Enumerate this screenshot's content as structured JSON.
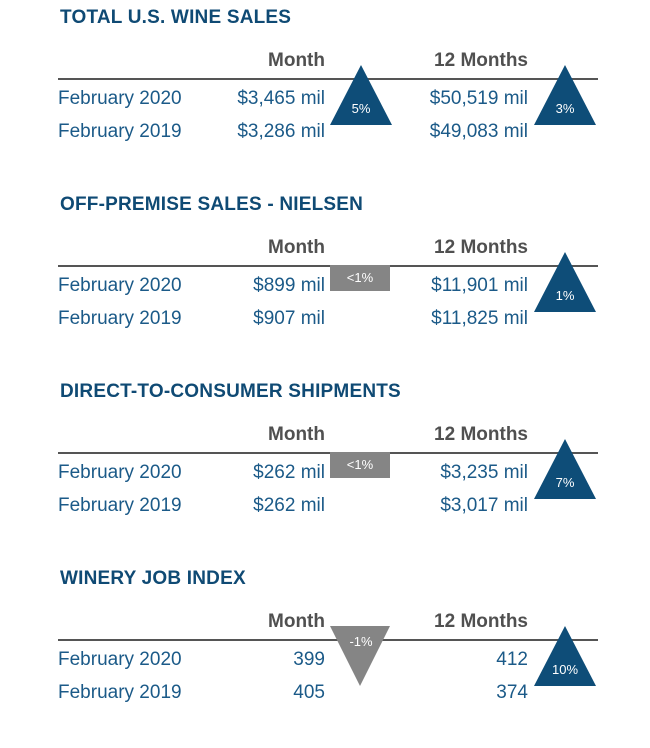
{
  "colors": {
    "up": "#0e4d78",
    "neutral": "#858585",
    "down": "#858585",
    "title": "#0f4a74",
    "text": "#1b5a88"
  },
  "sections": [
    {
      "title": "TOTAL U.S. WINE SALES",
      "col_month": "Month",
      "col_12": "12 Months",
      "rows": [
        {
          "label": "February 2020",
          "month": "$3,465 mil",
          "twelve": "$50,519 mil"
        },
        {
          "label": "February 2019",
          "month": "$3,286 mil",
          "twelve": "$49,083 mil"
        }
      ],
      "month_change": {
        "value": "5%",
        "direction": "up"
      },
      "twelve_change": {
        "value": "3%",
        "direction": "up"
      }
    },
    {
      "title": "OFF-PREMISE SALES - NIELSEN",
      "col_month": "Month",
      "col_12": "12 Months",
      "rows": [
        {
          "label": "February 2020",
          "month": "$899 mil",
          "twelve": "$11,901 mil"
        },
        {
          "label": "February 2019",
          "month": "$907 mil",
          "twelve": "$11,825 mil"
        }
      ],
      "month_change": {
        "value": "<1%",
        "direction": "flat"
      },
      "twelve_change": {
        "value": "1%",
        "direction": "up"
      }
    },
    {
      "title": "DIRECT-TO-CONSUMER SHIPMENTS",
      "col_month": "Month",
      "col_12": "12 Months",
      "rows": [
        {
          "label": "February 2020",
          "month": "$262 mil",
          "twelve": "$3,235 mil"
        },
        {
          "label": "February 2019",
          "month": "$262 mil",
          "twelve": "$3,017 mil"
        }
      ],
      "month_change": {
        "value": "<1%",
        "direction": "flat"
      },
      "twelve_change": {
        "value": "7%",
        "direction": "up"
      }
    },
    {
      "title": "WINERY JOB INDEX",
      "col_month": "Month",
      "col_12": "12 Months",
      "rows": [
        {
          "label": "February 2020",
          "month": "399",
          "twelve": "412"
        },
        {
          "label": "February 2019",
          "month": "405",
          "twelve": "374"
        }
      ],
      "month_change": {
        "value": "-1%",
        "direction": "down"
      },
      "twelve_change": {
        "value": "10%",
        "direction": "up"
      }
    }
  ]
}
